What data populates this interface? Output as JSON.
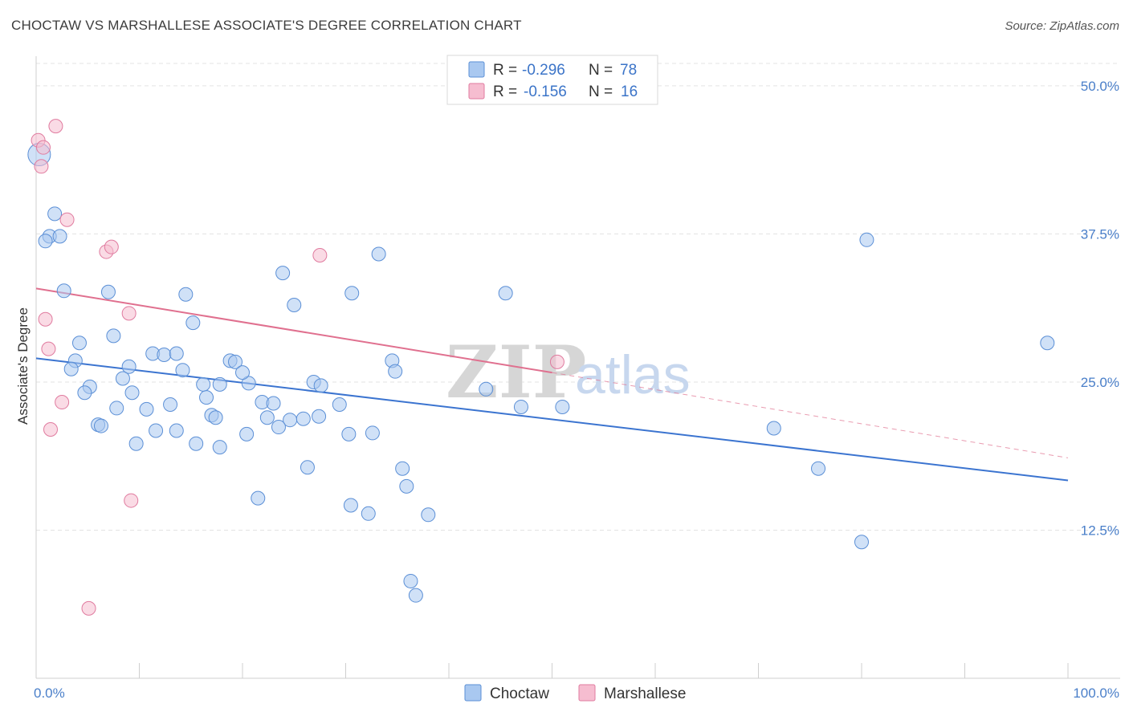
{
  "title": "CHOCTAW VS MARSHALLESE ASSOCIATE'S DEGREE CORRELATION CHART",
  "source": "Source: ZipAtlas.com",
  "watermark": {
    "part1": "ZIP",
    "part2": "atlas"
  },
  "legend": {
    "rows": [
      {
        "r_label": "R =",
        "r_value": "-0.296",
        "n_label": "N =",
        "n_value": "78",
        "color": "#a9c8f0",
        "stroke": "#5b8fd6"
      },
      {
        "r_label": "R =",
        "r_value": "-0.156",
        "n_label": "N =",
        "n_value": "16",
        "color": "#f6bdd0",
        "stroke": "#e07b9f"
      }
    ]
  },
  "bottom_legend": [
    "Choctaw",
    "Marshallese"
  ],
  "chart_data": {
    "type": "scatter",
    "title": "CHOCTAW VS MARSHALLESE ASSOCIATE'S DEGREE CORRELATION CHART",
    "xlabel": "",
    "ylabel": "Associate's Degree",
    "xlim": [
      0,
      100
    ],
    "ylim": [
      0,
      52.5
    ],
    "x_tick_labels": [
      "0.0%",
      "100.0%"
    ],
    "y_ticks": [
      12.5,
      25.0,
      37.5,
      50.0
    ],
    "y_tick_labels": [
      "12.5%",
      "25.0%",
      "37.5%",
      "50.0%"
    ],
    "grid": true,
    "series": [
      {
        "name": "Choctaw",
        "color": "#a9c8f0",
        "stroke": "#5b8fd6",
        "trend": {
          "x0": 0,
          "y0": 27.0,
          "x1": 100,
          "y1": 16.7,
          "color": "#3b74d0"
        },
        "points": [
          [
            0.3,
            44.2
          ],
          [
            1.8,
            39.2
          ],
          [
            1.3,
            37.3
          ],
          [
            2.3,
            37.3
          ],
          [
            0.9,
            36.9
          ],
          [
            2.7,
            32.7
          ],
          [
            7.0,
            32.6
          ],
          [
            14.5,
            32.4
          ],
          [
            30.6,
            32.5
          ],
          [
            45.5,
            32.5
          ],
          [
            23.9,
            34.2
          ],
          [
            33.2,
            35.8
          ],
          [
            25.0,
            31.5
          ],
          [
            15.2,
            30.0
          ],
          [
            7.5,
            28.9
          ],
          [
            4.2,
            28.3
          ],
          [
            3.8,
            26.8
          ],
          [
            3.4,
            26.1
          ],
          [
            9.0,
            26.3
          ],
          [
            11.3,
            27.4
          ],
          [
            12.4,
            27.3
          ],
          [
            13.6,
            27.4
          ],
          [
            14.2,
            26.0
          ],
          [
            18.8,
            26.8
          ],
          [
            19.3,
            26.7
          ],
          [
            20.6,
            24.9
          ],
          [
            8.4,
            25.3
          ],
          [
            5.2,
            24.6
          ],
          [
            4.7,
            24.1
          ],
          [
            9.3,
            24.1
          ],
          [
            16.2,
            24.8
          ],
          [
            17.8,
            24.8
          ],
          [
            20.0,
            25.8
          ],
          [
            26.9,
            25.0
          ],
          [
            27.6,
            24.7
          ],
          [
            34.5,
            26.8
          ],
          [
            16.5,
            23.7
          ],
          [
            7.8,
            22.8
          ],
          [
            10.7,
            22.7
          ],
          [
            13.0,
            23.1
          ],
          [
            17.0,
            22.2
          ],
          [
            17.4,
            22.0
          ],
          [
            21.9,
            23.3
          ],
          [
            23.0,
            23.2
          ],
          [
            22.4,
            22.0
          ],
          [
            24.6,
            21.8
          ],
          [
            25.9,
            21.9
          ],
          [
            27.4,
            22.1
          ],
          [
            29.4,
            23.1
          ],
          [
            34.8,
            25.9
          ],
          [
            6.0,
            21.4
          ],
          [
            6.3,
            21.3
          ],
          [
            11.6,
            20.9
          ],
          [
            13.6,
            20.9
          ],
          [
            20.4,
            20.6
          ],
          [
            23.5,
            21.2
          ],
          [
            30.3,
            20.6
          ],
          [
            32.6,
            20.7
          ],
          [
            9.7,
            19.8
          ],
          [
            15.5,
            19.8
          ],
          [
            17.8,
            19.5
          ],
          [
            26.3,
            17.8
          ],
          [
            35.5,
            17.7
          ],
          [
            35.9,
            16.2
          ],
          [
            21.5,
            15.2
          ],
          [
            30.5,
            14.6
          ],
          [
            32.2,
            13.9
          ],
          [
            38.0,
            13.8
          ],
          [
            43.6,
            24.4
          ],
          [
            47.0,
            22.9
          ],
          [
            51.0,
            22.9
          ],
          [
            71.5,
            21.1
          ],
          [
            75.8,
            17.7
          ],
          [
            80.5,
            37.0
          ],
          [
            80.0,
            11.5
          ],
          [
            98.0,
            28.3
          ],
          [
            36.3,
            8.2
          ],
          [
            36.8,
            7.0
          ]
        ]
      },
      {
        "name": "Marshallese",
        "color": "#f6bdd0",
        "stroke": "#e07b9f",
        "trend": {
          "x0": 0,
          "y0": 32.9,
          "x1": 50,
          "y1": 25.8,
          "dash_x1": 100,
          "dash_y1": 18.6,
          "color": "#e0708f"
        },
        "points": [
          [
            0.2,
            45.4
          ],
          [
            1.9,
            46.6
          ],
          [
            0.7,
            44.8
          ],
          [
            0.5,
            43.2
          ],
          [
            3.0,
            38.7
          ],
          [
            6.8,
            36.0
          ],
          [
            7.3,
            36.4
          ],
          [
            27.5,
            35.7
          ],
          [
            0.9,
            30.3
          ],
          [
            9.0,
            30.8
          ],
          [
            1.2,
            27.8
          ],
          [
            50.5,
            26.7
          ],
          [
            2.5,
            23.3
          ],
          [
            1.4,
            21.0
          ],
          [
            9.2,
            15.0
          ],
          [
            5.1,
            5.9
          ]
        ]
      }
    ]
  }
}
